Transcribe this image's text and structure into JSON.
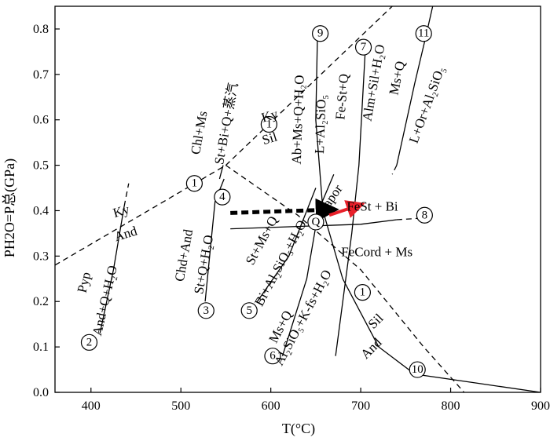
{
  "chart_data": {
    "type": "line",
    "title": "",
    "xlabel": "T(°C)",
    "ylabel": "PH2O=P总(GPa)",
    "xlim": [
      360,
      900
    ],
    "ylim": [
      0,
      0.85
    ],
    "xticks": [
      "400",
      "500",
      "600",
      "700",
      "800",
      "900"
    ],
    "yticks": [
      "0.0",
      "0.1",
      "0.2",
      "0.3",
      "0.4",
      "0.5",
      "0.6",
      "0.7",
      "0.8"
    ],
    "grid": false,
    "series": [
      {
        "id": "ky-sil-and",
        "style": "dashed",
        "points": [
          [
            360,
            0.28
          ],
          [
            550,
            0.5
          ]
        ]
      },
      {
        "id": "ky-sil",
        "style": "dashed",
        "points": [
          [
            550,
            0.5
          ],
          [
            735,
            0.85
          ]
        ]
      },
      {
        "id": "sil-and",
        "style": "dashed",
        "points": [
          [
            550,
            0.5
          ],
          [
            630,
            0.39
          ],
          [
            700,
            0.27
          ],
          [
            770,
            0.1
          ],
          [
            815,
            0.0
          ]
        ]
      },
      {
        "id": "reaction-2",
        "style": "solid",
        "points": [
          [
            410,
            0.13
          ],
          [
            425,
            0.27
          ],
          [
            437,
            0.41
          ]
        ]
      },
      {
        "id": "reaction-2-ext",
        "style": "dashed",
        "points": [
          [
            437,
            0.41
          ],
          [
            442,
            0.46
          ]
        ]
      },
      {
        "id": "reaction-3",
        "style": "solid",
        "points": [
          [
            527,
            0.2
          ],
          [
            532,
            0.3
          ],
          [
            538,
            0.42
          ],
          [
            548,
            0.47
          ]
        ]
      },
      {
        "id": "reaction-4",
        "style": "solid",
        "points": [
          [
            543,
            0.47
          ],
          [
            547,
            0.5
          ]
        ]
      },
      {
        "id": "reaction-5",
        "style": "solid",
        "points": [
          [
            585,
            0.2
          ],
          [
            620,
            0.3
          ],
          [
            650,
            0.45
          ]
        ]
      },
      {
        "id": "reaction-6",
        "style": "solid",
        "points": [
          [
            613,
            0.08
          ],
          [
            640,
            0.25
          ],
          [
            653,
            0.4
          ],
          [
            670,
            0.48
          ]
        ]
      },
      {
        "id": "reaction-7",
        "style": "solid",
        "points": [
          [
            672,
            0.08
          ],
          [
            690,
            0.35
          ],
          [
            698,
            0.5
          ],
          [
            705,
            0.75
          ]
        ]
      },
      {
        "id": "reaction-8",
        "style": "solid",
        "points": [
          [
            555,
            0.36
          ],
          [
            700,
            0.37
          ],
          [
            740,
            0.38
          ]
        ]
      },
      {
        "id": "reaction-8-ext",
        "style": "dashed",
        "points": [
          [
            740,
            0.38
          ],
          [
            780,
            0.385
          ]
        ]
      },
      {
        "id": "reaction-9-10",
        "style": "solid",
        "points": [
          [
            652,
            0.8
          ],
          [
            650,
            0.6
          ],
          [
            658,
            0.4
          ],
          [
            680,
            0.25
          ],
          [
            720,
            0.1
          ],
          [
            760,
            0.04
          ],
          [
            830,
            0.02
          ],
          [
            900,
            0.0
          ]
        ]
      },
      {
        "id": "reaction-11",
        "style": "solid",
        "points": [
          [
            740,
            0.5
          ],
          [
            760,
            0.68
          ],
          [
            772,
            0.78
          ],
          [
            780,
            0.85
          ]
        ]
      },
      {
        "id": "reaction-11-ext",
        "style": "dashed",
        "points": [
          [
            740,
            0.5
          ],
          [
            735,
            0.48
          ]
        ]
      }
    ],
    "nodes": [
      {
        "label": "9",
        "x": 655,
        "y": 0.79
      },
      {
        "label": "7",
        "x": 703,
        "y": 0.76
      },
      {
        "label": "11",
        "x": 770,
        "y": 0.79
      },
      {
        "label": "1",
        "x": 598,
        "y": 0.59
      },
      {
        "label": "1",
        "x": 515,
        "y": 0.46
      },
      {
        "label": "4",
        "x": 546,
        "y": 0.43
      },
      {
        "label": "1",
        "x": 702,
        "y": 0.22
      },
      {
        "label": "8",
        "x": 771,
        "y": 0.39
      },
      {
        "label": "3",
        "x": 528,
        "y": 0.18
      },
      {
        "label": "5",
        "x": 576,
        "y": 0.18
      },
      {
        "label": "6",
        "x": 602,
        "y": 0.08
      },
      {
        "label": "2",
        "x": 398,
        "y": 0.11
      },
      {
        "label": "10",
        "x": 763,
        "y": 0.05
      },
      {
        "label": "Q",
        "x": 650,
        "y": 0.375
      }
    ],
    "arrows": [
      {
        "style": "thick-dashed",
        "color": "#000000",
        "from": [
          555,
          0.395
        ],
        "to": [
          663,
          0.402
        ]
      },
      {
        "style": "solid",
        "color": "#e8202a",
        "from": [
          665,
          0.39
        ],
        "to": [
          695,
          0.41
        ]
      }
    ],
    "annotations": [
      {
        "text": "Ky",
        "x": 435,
        "y": 0.39,
        "angle": -17
      },
      {
        "text": "And",
        "x": 440,
        "y": 0.34,
        "angle": -17
      },
      {
        "text": "Ky",
        "x": 600,
        "y": 0.6,
        "angle": -17
      },
      {
        "text": "Sil",
        "x": 600,
        "y": 0.55,
        "angle": -17
      },
      {
        "text": "Sil",
        "x": 720,
        "y": 0.15,
        "angle": -45
      },
      {
        "text": "And",
        "x": 715,
        "y": 0.09,
        "angle": -45
      },
      {
        "text": "Pyp",
        "x": 397,
        "y": 0.24,
        "angle": -77
      },
      {
        "text": "And+Q+H₂O",
        "x": 420,
        "y": 0.2,
        "angle": -77
      },
      {
        "text": "Chd+And",
        "x": 508,
        "y": 0.3,
        "angle": -80
      },
      {
        "text": "St+Q+H₂O",
        "x": 530,
        "y": 0.28,
        "angle": -80
      },
      {
        "text": "Chl+Ms",
        "x": 525,
        "y": 0.57,
        "angle": -80
      },
      {
        "text": "St+Bi+Q+蒸汽",
        "x": 555,
        "y": 0.59,
        "angle": -80
      },
      {
        "text": "St+Ms+Q",
        "x": 594,
        "y": 0.33,
        "angle": -62
      },
      {
        "text": "Bi+Al₂SiO₅+H₂O",
        "x": 615,
        "y": 0.28,
        "angle": -62
      },
      {
        "text": "Ms+Q",
        "x": 615,
        "y": 0.14,
        "angle": -62
      },
      {
        "text": "Al₂SiO₅+K-fs+H₂O",
        "x": 640,
        "y": 0.16,
        "angle": -62
      },
      {
        "text": "Ab+Ms+Q+H₂O",
        "x": 635,
        "y": 0.6,
        "angle": -88
      },
      {
        "text": "L+Al₂SiO₅",
        "x": 660,
        "y": 0.59,
        "angle": -88
      },
      {
        "text": "Fe-St+Q",
        "x": 684,
        "y": 0.65,
        "angle": -85
      },
      {
        "text": "Vapor",
        "x": 670,
        "y": 0.42,
        "angle": -55
      },
      {
        "text": "Alm+Sil+H₂O",
        "x": 719,
        "y": 0.68,
        "angle": -80
      },
      {
        "text": "Ms+Q",
        "x": 745,
        "y": 0.69,
        "angle": -78
      },
      {
        "text": "L+Or+Al₂SiO₅",
        "x": 778,
        "y": 0.63,
        "angle": -70
      },
      {
        "text": "FeSt + Bi",
        "x": 713,
        "y": 0.4,
        "angle": 0
      },
      {
        "text": "FeCord + Ms",
        "x": 718,
        "y": 0.3,
        "angle": 0
      }
    ]
  }
}
